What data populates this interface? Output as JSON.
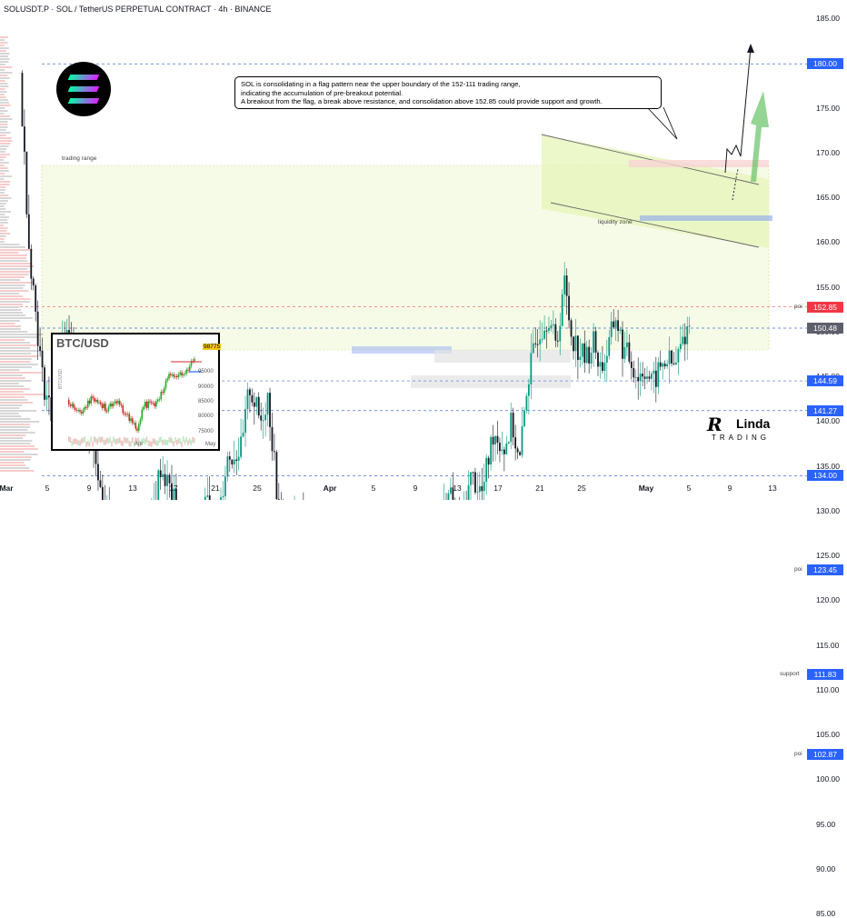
{
  "header": {
    "title": "SOLUSDT.P · SOL / TetherUS PERPETUAL CONTRACT · 4h · BINANCE"
  },
  "annotation": {
    "line1": "SOL is consolidating in a flag pattern near the upper boundary of the 152-111 trading range,",
    "line2": "indicating the accumulation of pre-breakout potential.",
    "line3": "A breakout from the flag, a break above resistance, and consolidation above 152.85 could provide support and growth."
  },
  "labels": {
    "trading_range": "trading range",
    "liquidity_zone": "liquidity zone",
    "poi": "poi",
    "support": "support"
  },
  "inset": {
    "title": "BTC/USD",
    "price_tag": "98775",
    "axis_label": "BTC/USD",
    "y_ticks": [
      "95000",
      "90000",
      "85000",
      "80000",
      "75000"
    ],
    "x_ticks": [
      "Apr",
      "May"
    ]
  },
  "brand": {
    "mark": "R",
    "name": "Linda",
    "sub": "TRADING"
  },
  "colors": {
    "up": "#089981",
    "down": "#131722",
    "resistance_line": "#ef5350",
    "level_line": "#4a6fd6",
    "range_fill": "#e8f5c8",
    "price_tag_red": "#f23645",
    "price_tag_blue": "#2962ff",
    "price_tag_gray": "#5d606b",
    "arrow_green": "#66c266"
  },
  "chart_data": {
    "type": "candlestick",
    "title": "SOLUSDT.P · SOL / TetherUS PERPETUAL CONTRACT · 4h · BINANCE",
    "y_ticks": [
      185,
      180,
      175,
      170,
      165,
      160,
      155,
      150,
      145,
      140,
      135,
      130,
      125,
      120,
      115,
      110,
      105,
      100,
      95,
      90,
      85
    ],
    "y_range": [
      83,
      188
    ],
    "x_ticks": [
      "Mar",
      "5",
      "9",
      "13",
      "17",
      "21",
      "25",
      "Apr",
      "5",
      "9",
      "13",
      "17",
      "21",
      "25",
      "May",
      "5",
      "9",
      "13"
    ],
    "levels": [
      {
        "price": 180.0,
        "label": "180.00",
        "tag": "blue",
        "note": ""
      },
      {
        "price": 152.85,
        "label": "152.85",
        "tag": "red",
        "note": "poi"
      },
      {
        "price": 150.48,
        "label": "150.48",
        "tag": "gray",
        "note": ""
      },
      {
        "price": 144.59,
        "label": "144.59",
        "tag": "blue",
        "note": ""
      },
      {
        "price": 141.27,
        "label": "141.27",
        "tag": "blue",
        "note": ""
      },
      {
        "price": 134.0,
        "label": "134.00",
        "tag": "blue",
        "note": ""
      },
      {
        "price": 123.45,
        "label": "123.45",
        "tag": "blue",
        "note": "poi"
      },
      {
        "price": 111.83,
        "label": "111.83",
        "tag": "blue",
        "note": "support"
      },
      {
        "price": 102.87,
        "label": "102.87",
        "tag": "blue",
        "note": "poi"
      }
    ],
    "price_path": [
      [
        0,
        179
      ],
      [
        0.012,
        160
      ],
      [
        0.03,
        145
      ],
      [
        0.045,
        140
      ],
      [
        0.06,
        150
      ],
      [
        0.075,
        147
      ],
      [
        0.09,
        140
      ],
      [
        0.11,
        133
      ],
      [
        0.13,
        125
      ],
      [
        0.145,
        116
      ],
      [
        0.16,
        125
      ],
      [
        0.175,
        128
      ],
      [
        0.19,
        135
      ],
      [
        0.205,
        132
      ],
      [
        0.22,
        128
      ],
      [
        0.235,
        124
      ],
      [
        0.25,
        132
      ],
      [
        0.265,
        128
      ],
      [
        0.28,
        136
      ],
      [
        0.3,
        137
      ],
      [
        0.31,
        144
      ],
      [
        0.325,
        140
      ],
      [
        0.335,
        143
      ],
      [
        0.35,
        130
      ],
      [
        0.365,
        128
      ],
      [
        0.38,
        130
      ],
      [
        0.395,
        125
      ],
      [
        0.41,
        124
      ],
      [
        0.425,
        126
      ],
      [
        0.44,
        124
      ],
      [
        0.455,
        115
      ],
      [
        0.47,
        113
      ],
      [
        0.485,
        104
      ],
      [
        0.495,
        96
      ],
      [
        0.505,
        106
      ],
      [
        0.52,
        104
      ],
      [
        0.535,
        113
      ],
      [
        0.55,
        121
      ],
      [
        0.565,
        128
      ],
      [
        0.58,
        132
      ],
      [
        0.595,
        128
      ],
      [
        0.61,
        134
      ],
      [
        0.625,
        132
      ],
      [
        0.64,
        139
      ],
      [
        0.655,
        137
      ],
      [
        0.665,
        140
      ],
      [
        0.675,
        135
      ],
      [
        0.685,
        144
      ],
      [
        0.7,
        150
      ],
      [
        0.715,
        152
      ],
      [
        0.725,
        148
      ],
      [
        0.735,
        156
      ],
      [
        0.745,
        150
      ],
      [
        0.755,
        148
      ],
      [
        0.765,
        147
      ],
      [
        0.775,
        149
      ],
      [
        0.785,
        146
      ],
      [
        0.795,
        148
      ],
      [
        0.805,
        152
      ],
      [
        0.815,
        148
      ],
      [
        0.825,
        147
      ],
      [
        0.835,
        145
      ],
      [
        0.845,
        146
      ],
      [
        0.855,
        144
      ],
      [
        0.865,
        146
      ],
      [
        0.875,
        147
      ],
      [
        0.885,
        146
      ],
      [
        0.895,
        149
      ],
      [
        0.905,
        151
      ]
    ]
  }
}
